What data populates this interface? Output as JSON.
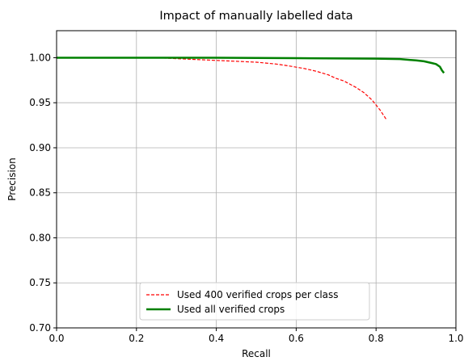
{
  "chart_data": {
    "type": "line",
    "title": "Impact of manually labelled data",
    "xlabel": "Recall",
    "ylabel": "Precision",
    "xlim": [
      0.0,
      1.0
    ],
    "ylim": [
      0.7,
      1.03
    ],
    "xticks": [
      "0.0",
      "0.2",
      "0.4",
      "0.6",
      "0.8",
      "1.0"
    ],
    "xtick_values": [
      0.0,
      0.2,
      0.4,
      0.6,
      0.8,
      1.0
    ],
    "yticks": [
      "0.70",
      "0.75",
      "0.80",
      "0.85",
      "0.90",
      "0.95",
      "1.00"
    ],
    "ytick_values": [
      0.7,
      0.75,
      0.8,
      0.85,
      0.9,
      0.95,
      1.0
    ],
    "grid": true,
    "legend_position": "lower center",
    "series": [
      {
        "name": "Used 400 verified crops per class",
        "color": "#ff0000",
        "linestyle": "dashed",
        "x": [
          0.0,
          0.1,
          0.2,
          0.25,
          0.3,
          0.35,
          0.4,
          0.45,
          0.5,
          0.55,
          0.58,
          0.62,
          0.65,
          0.68,
          0.7,
          0.72,
          0.75,
          0.77,
          0.79,
          0.81,
          0.825
        ],
        "y": [
          1.0,
          1.0,
          1.0,
          1.0,
          0.999,
          0.998,
          0.997,
          0.996,
          0.995,
          0.993,
          0.991,
          0.988,
          0.985,
          0.981,
          0.977,
          0.974,
          0.967,
          0.961,
          0.953,
          0.942,
          0.932
        ]
      },
      {
        "name": "Used all verified crops",
        "color": "#008000",
        "linestyle": "solid",
        "x": [
          0.0,
          0.2,
          0.4,
          0.6,
          0.8,
          0.86,
          0.9,
          0.92,
          0.94,
          0.95,
          0.96,
          0.965,
          0.97
        ],
        "y": [
          1.0,
          1.0,
          1.0,
          0.9995,
          0.999,
          0.9985,
          0.997,
          0.996,
          0.994,
          0.993,
          0.99,
          0.986,
          0.983
        ]
      }
    ]
  }
}
